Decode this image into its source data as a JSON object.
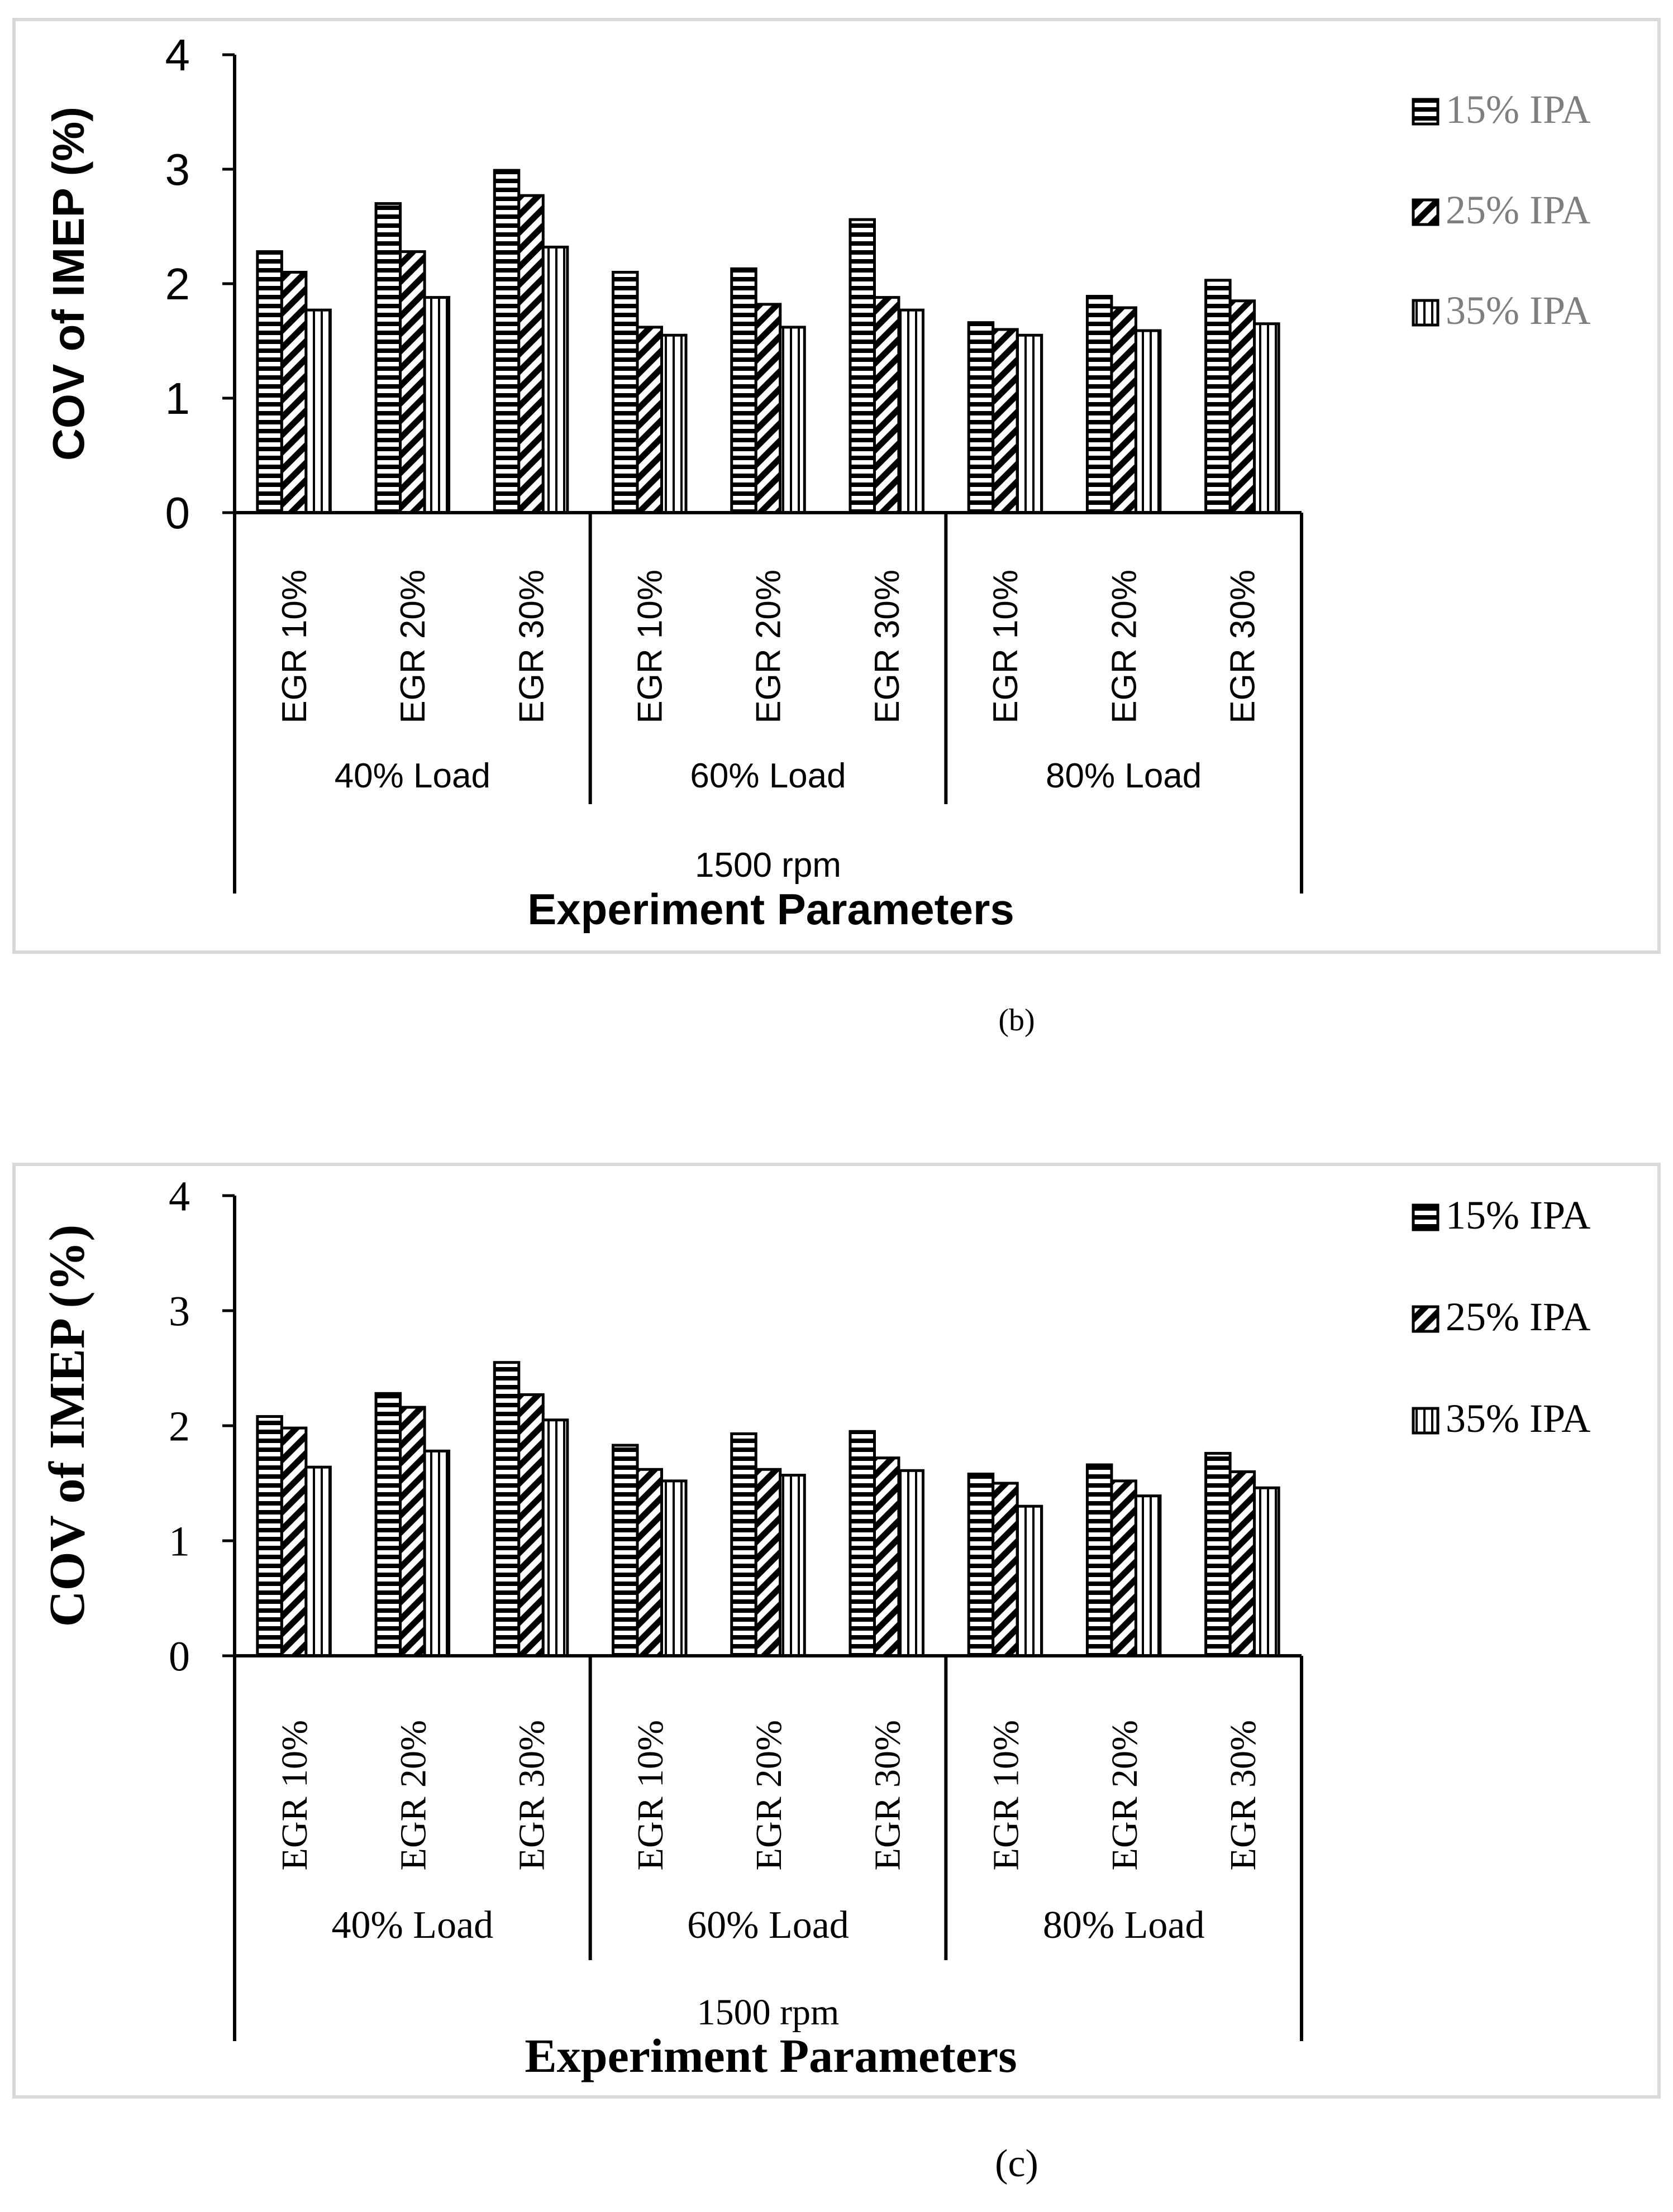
{
  "chart_data": [
    {
      "type": "bar",
      "panel": "b",
      "caption": "(b)",
      "title": "",
      "xlabel": "Experiment Parameters",
      "ylabel": "COV of IMEP (%)",
      "ylim": [
        0,
        4
      ],
      "yticks": [
        "0",
        "1",
        "2",
        "3",
        "4"
      ],
      "grid": false,
      "legend_position": "top-right",
      "categories": [
        "EGR 10%",
        "EGR 20%",
        "EGR 30%",
        "EGR 10%",
        "EGR 20%",
        "EGR 30%",
        "EGR 10%",
        "EGR 20%",
        "EGR 30%"
      ],
      "groups": [
        "40% Load",
        "60% Load",
        "80% Load"
      ],
      "super_group": "1500 rpm",
      "series": [
        {
          "name": "15% IPA",
          "pattern": "horizontal",
          "values": [
            2.28,
            2.7,
            2.99,
            2.1,
            2.13,
            2.56,
            1.66,
            1.89,
            2.03
          ]
        },
        {
          "name": "25% IPA",
          "pattern": "diagonal",
          "values": [
            2.1,
            2.28,
            2.77,
            1.62,
            1.82,
            1.88,
            1.6,
            1.79,
            1.85
          ]
        },
        {
          "name": "35% IPA",
          "pattern": "vertical",
          "values": [
            1.77,
            1.88,
            2.32,
            1.55,
            1.62,
            1.77,
            1.55,
            1.59,
            1.65
          ]
        }
      ]
    },
    {
      "type": "bar",
      "panel": "c",
      "caption": "(c)",
      "title": "",
      "xlabel": "Experiment Parameters",
      "ylabel": "COV of IMEP (%)",
      "ylim": [
        0,
        4
      ],
      "yticks": [
        "0",
        "1",
        "2",
        "3",
        "4"
      ],
      "grid": false,
      "legend_position": "top-right",
      "categories": [
        "EGR 10%",
        "EGR 20%",
        "EGR 30%",
        "EGR 10%",
        "EGR 20%",
        "EGR 30%",
        "EGR 10%",
        "EGR 20%",
        "EGR 30%"
      ],
      "groups": [
        "40% Load",
        "60% Load",
        "80% Load"
      ],
      "super_group": "1500 rpm",
      "series": [
        {
          "name": "15% IPA",
          "pattern": "horizontal",
          "values": [
            2.08,
            2.28,
            2.55,
            1.83,
            1.93,
            1.95,
            1.58,
            1.66,
            1.76
          ]
        },
        {
          "name": "25% IPA",
          "pattern": "diagonal",
          "values": [
            1.98,
            2.16,
            2.27,
            1.62,
            1.62,
            1.72,
            1.5,
            1.52,
            1.6
          ]
        },
        {
          "name": "35% IPA",
          "pattern": "vertical",
          "values": [
            1.64,
            1.78,
            2.05,
            1.52,
            1.57,
            1.61,
            1.3,
            1.39,
            1.46
          ]
        }
      ]
    }
  ]
}
